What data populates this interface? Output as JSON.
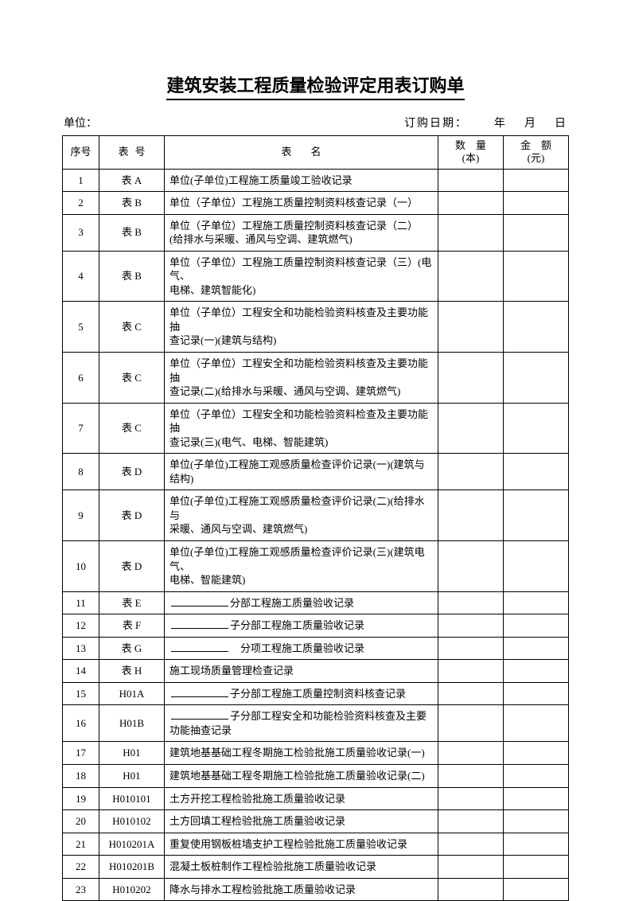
{
  "title": "建筑安装工程质量检验评定用表订购单",
  "meta": {
    "unit_label": "单位：",
    "date_label": "订购日期：",
    "year_label": "年",
    "month_label": "月",
    "day_label": "日"
  },
  "columns": {
    "seq": "序号",
    "code": "表号",
    "name": "表名",
    "qty_l1": "数　量",
    "qty_l2": "(本)",
    "amt_l1": "金　额",
    "amt_l2": "(元)"
  },
  "rows": [
    {
      "seq": "1",
      "code": "表 A",
      "name_parts": [
        "单位(子单位)工程施工质量竣工验收记录"
      ]
    },
    {
      "seq": "2",
      "code": "表 B",
      "name_parts": [
        "单位（子单位）工程施工质量控制资料核查记录（一）"
      ]
    },
    {
      "seq": "3",
      "code": "表 B",
      "name_parts": [
        "单位（子单位）工程施工质量控制资料核查记录（二）",
        "(给排水与采暖、通风与空调、建筑燃气)"
      ]
    },
    {
      "seq": "4",
      "code": "表 B",
      "name_parts": [
        "单位（子单位）工程施工质量控制资料核查记录（三）(电气、",
        "电梯、建筑智能化)"
      ]
    },
    {
      "seq": "5",
      "code": "表 C",
      "name_parts": [
        "单位（子单位）工程安全和功能检验资料核查及主要功能抽",
        "查记录(一)(建筑与结构)"
      ]
    },
    {
      "seq": "6",
      "code": "表 C",
      "name_parts": [
        "单位（子单位）工程安全和功能检验资料核查及主要功能抽",
        "查记录(二)(给排水与采暖、通风与空调、建筑燃气)"
      ]
    },
    {
      "seq": "7",
      "code": "表 C",
      "name_parts": [
        "单位（子单位）工程安全和功能检验资料检查及主要功能抽",
        "查记录(三)(电气、电梯、智能建筑)"
      ]
    },
    {
      "seq": "8",
      "code": "表 D",
      "name_parts": [
        "单位(子单位)工程施工观感质量检查评价记录(一)(建筑与结构)"
      ]
    },
    {
      "seq": "9",
      "code": "表 D",
      "name_parts": [
        "单位(子单位)工程施工观感质量检查评价记录(二)(给排水与",
        "采暖、通风与空调、建筑燃气)"
      ]
    },
    {
      "seq": "10",
      "code": "表 D",
      "name_parts": [
        "单位(子单位)工程施工观感质量检查评价记录(三)(建筑电气、",
        "电梯、智能建筑)"
      ]
    },
    {
      "seq": "11",
      "code": "表 E",
      "blank_before": true,
      "name_parts": [
        "分部工程施工质量验收记录"
      ]
    },
    {
      "seq": "12",
      "code": "表 F",
      "blank_before": true,
      "name_parts": [
        "子分部工程施工质量验收记录"
      ]
    },
    {
      "seq": "13",
      "code": "表 G",
      "blank_before": true,
      "leading_space": true,
      "name_parts": [
        "分项工程施工质量验收记录"
      ]
    },
    {
      "seq": "14",
      "code": "表 H",
      "name_parts": [
        "施工现场质量管理检查记录"
      ]
    },
    {
      "seq": "15",
      "code": "H01A",
      "blank_before": true,
      "name_parts": [
        "子分部工程施工质量控制资料核查记录"
      ]
    },
    {
      "seq": "16",
      "code": "H01B",
      "blank_before": true,
      "name_parts": [
        "子分部工程安全和功能检验资料核查及主要",
        "功能抽查记录"
      ]
    },
    {
      "seq": "17",
      "code": "H01",
      "name_parts": [
        "建筑地基基础工程冬期施工检验批施工质量验收记录(一)"
      ]
    },
    {
      "seq": "18",
      "code": "H01",
      "name_parts": [
        "建筑地基基础工程冬期施工检验批施工质量验收记录(二)"
      ]
    },
    {
      "seq": "19",
      "code": "H010101",
      "name_parts": [
        "土方开挖工程检验批施工质量验收记录"
      ]
    },
    {
      "seq": "20",
      "code": "H010102",
      "name_parts": [
        "土方回填工程检验批施工质量验收记录"
      ]
    },
    {
      "seq": "21",
      "code": "H010201A",
      "name_parts": [
        "重复使用钢板桩墙支护工程检验批施工质量验收记录"
      ]
    },
    {
      "seq": "22",
      "code": "H010201B",
      "name_parts": [
        "混凝土板桩制作工程检验批施工质量验收记录"
      ]
    },
    {
      "seq": "23",
      "code": "H010202",
      "name_parts": [
        "降水与排水工程检验批施工质量验收记录"
      ]
    }
  ]
}
